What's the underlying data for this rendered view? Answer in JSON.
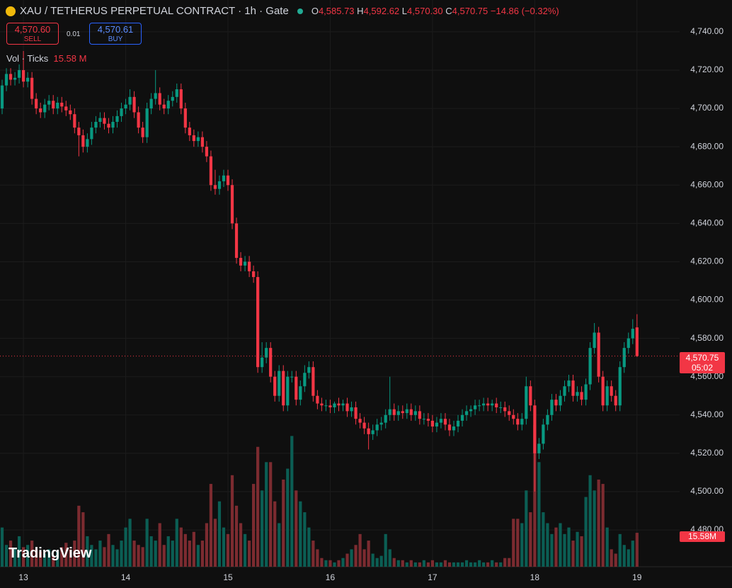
{
  "header": {
    "symbol": "XAU / TETHERUS PERPETUAL CONTRACT · 1h · Gate",
    "ohlc": [
      {
        "key": "O",
        "value": "4,585.73"
      },
      {
        "key": "H",
        "value": "4,592.62"
      },
      {
        "key": "L",
        "value": "4,570.30"
      },
      {
        "key": "C",
        "value": "4,570.75"
      }
    ],
    "change": "−14.86 (−0.32%)",
    "sell_price": "4,570.60",
    "sell_label": "SELL",
    "spread": "0.01",
    "buy_price": "4,570.61",
    "buy_label": "BUY",
    "volume_title": "Vol · Ticks",
    "volume_value": "15.58 M",
    "last_price_label": "4,570.75",
    "countdown": "05:02",
    "volume_axis_label": "15.58M",
    "logo": "TradingView"
  },
  "chart_data": {
    "type": "candlestick",
    "up_color": "#089981",
    "down_color": "#f23645",
    "up_volume_color": "#0b5e54",
    "down_volume_color": "#7c2b30",
    "grid": true,
    "xlim": [
      -0.5,
      159
    ],
    "xticks": [
      {
        "value": 5,
        "label": "13"
      },
      {
        "value": 29,
        "label": "14"
      },
      {
        "value": 53,
        "label": "15"
      },
      {
        "value": 77,
        "label": "16"
      },
      {
        "value": 101,
        "label": "17"
      },
      {
        "value": 125,
        "label": "18"
      },
      {
        "value": 149,
        "label": "19"
      }
    ],
    "ylim": [
      4460.8,
      4756.6
    ],
    "yticks": [
      {
        "value": 4480,
        "label": "4,480.00"
      },
      {
        "value": 4500,
        "label": "4,500.00"
      },
      {
        "value": 4520,
        "label": "4,520.00"
      },
      {
        "value": 4540,
        "label": "4,540.00"
      },
      {
        "value": 4560,
        "label": "4,560.00"
      },
      {
        "value": 4580,
        "label": "4,580.00"
      },
      {
        "value": 4600,
        "label": "4,600.00"
      },
      {
        "value": 4620,
        "label": "4,620.00"
      },
      {
        "value": 4640,
        "label": "4,640.00"
      },
      {
        "value": 4660,
        "label": "4,660.00"
      },
      {
        "value": 4680,
        "label": "4,680.00"
      },
      {
        "value": 4700,
        "label": "4,700.00"
      },
      {
        "value": 4720,
        "label": "4,720.00"
      },
      {
        "value": 4740,
        "label": "4,740.00"
      }
    ],
    "open": [
      4700,
      4712,
      4718,
      4715,
      4716,
      4720,
      4714,
      4716,
      4705,
      4700,
      4698,
      4702,
      4704,
      4700,
      4703,
      4701,
      4699,
      4697,
      4690,
      4686,
      4680,
      4684,
      4690,
      4693,
      4695,
      4692,
      4690,
      4693,
      4696,
      4700,
      4702,
      4706,
      4698,
      4690,
      4685,
      4700,
      4705,
      4708,
      4702,
      4700,
      4704,
      4706,
      4710,
      4700,
      4690,
      4686,
      4683,
      4685,
      4680,
      4675,
      4660,
      4658,
      4662,
      4665,
      4660,
      4640,
      4622,
      4618,
      4620,
      4615,
      4612,
      4565,
      4570,
      4575,
      4560,
      4550,
      4563,
      4545,
      4560,
      4560,
      4548,
      4555,
      4562,
      4565,
      4550,
      4546,
      4545,
      4545,
      4544,
      4546,
      4545,
      4546,
      4542,
      4544,
      4538,
      4536,
      4533,
      4530,
      4532,
      4535,
      4536,
      4540,
      4543,
      4540,
      4542,
      4541,
      4543,
      4540,
      4542,
      4538,
      4538,
      4537,
      4534,
      4536,
      4538,
      4535,
      4532,
      4534,
      4537,
      4540,
      4542,
      4543,
      4545,
      4545,
      4546,
      4545,
      4546,
      4544,
      4544,
      4542,
      4540,
      4538,
      4535,
      4538,
      4555,
      4545,
      4520,
      4525,
      4535,
      4540,
      4548,
      4545,
      4550,
      4555,
      4558,
      4550,
      4552,
      4548,
      4556,
      4575,
      4583,
      4560,
      4545,
      4555,
      4550,
      4545,
      4565,
      4575,
      4580,
      4585.73
    ],
    "high": [
      4715,
      4721,
      4721,
      4719,
      4723,
      4730,
      4719,
      4719,
      4708,
      4703,
      4705,
      4707,
      4707,
      4706,
      4706,
      4704,
      4702,
      4700,
      4693,
      4689,
      4687,
      4693,
      4696,
      4698,
      4698,
      4695,
      4696,
      4699,
      4703,
      4705,
      4710,
      4709,
      4701,
      4693,
      4703,
      4708,
      4720,
      4711,
      4705,
      4707,
      4709,
      4713,
      4713,
      4703,
      4693,
      4689,
      4688,
      4688,
      4683,
      4678,
      4668,
      4665,
      4668,
      4668,
      4663,
      4643,
      4625,
      4623,
      4623,
      4618,
      4615,
      4578,
      4578,
      4578,
      4563,
      4566,
      4566,
      4563,
      4563,
      4563,
      4558,
      4566,
      4568,
      4568,
      4553,
      4549,
      4548,
      4548,
      4547,
      4549,
      4548,
      4549,
      4547,
      4547,
      4541,
      4539,
      4536,
      4535,
      4538,
      4539,
      4543,
      4560,
      4546,
      4545,
      4545,
      4546,
      4546,
      4545,
      4545,
      4541,
      4541,
      4540,
      4539,
      4541,
      4541,
      4538,
      4537,
      4540,
      4543,
      4545,
      4545,
      4548,
      4548,
      4549,
      4549,
      4548,
      4549,
      4547,
      4547,
      4545,
      4543,
      4541,
      4541,
      4560,
      4558,
      4548,
      4528,
      4538,
      4543,
      4551,
      4551,
      4553,
      4558,
      4561,
      4561,
      4555,
      4555,
      4559,
      4578,
      4588,
      4586,
      4563,
      4558,
      4558,
      4553,
      4568,
      4578,
      4583,
      4590,
      4592.62
    ],
    "low": [
      4697,
      4709,
      4712,
      4712,
      4713,
      4711,
      4711,
      4702,
      4697,
      4695,
      4695,
      4699,
      4697,
      4697,
      4698,
      4696,
      4694,
      4687,
      4675,
      4677,
      4677,
      4681,
      4687,
      4690,
      4689,
      4687,
      4687,
      4690,
      4693,
      4697,
      4699,
      4695,
      4687,
      4682,
      4682,
      4697,
      4702,
      4699,
      4697,
      4697,
      4701,
      4703,
      4697,
      4687,
      4683,
      4680,
      4680,
      4677,
      4672,
      4657,
      4655,
      4655,
      4659,
      4657,
      4637,
      4619,
      4615,
      4615,
      4612,
      4609,
      4562,
      4562,
      4567,
      4557,
      4547,
      4547,
      4542,
      4542,
      4557,
      4545,
      4545,
      4552,
      4559,
      4547,
      4543,
      4542,
      4542,
      4541,
      4541,
      4542,
      4542,
      4539,
      4539,
      4535,
      4533,
      4530,
      4522,
      4527,
      4529,
      4532,
      4533,
      4537,
      4537,
      4537,
      4538,
      4538,
      4537,
      4537,
      4535,
      4535,
      4534,
      4531,
      4531,
      4533,
      4532,
      4529,
      4529,
      4531,
      4534,
      4537,
      4539,
      4540,
      4542,
      4542,
      4542,
      4542,
      4541,
      4541,
      4539,
      4537,
      4535,
      4532,
      4532,
      4535,
      4542,
      4500,
      4517,
      4522,
      4532,
      4537,
      4542,
      4542,
      4547,
      4552,
      4547,
      4547,
      4545,
      4545,
      4553,
      4572,
      4557,
      4542,
      4542,
      4547,
      4542,
      4542,
      4562,
      4572,
      4577,
      4570.3
    ],
    "close": [
      4712,
      4718,
      4715,
      4716,
      4720,
      4714,
      4716,
      4705,
      4700,
      4698,
      4702,
      4704,
      4700,
      4703,
      4701,
      4699,
      4697,
      4690,
      4686,
      4680,
      4684,
      4690,
      4693,
      4695,
      4692,
      4690,
      4693,
      4696,
      4700,
      4702,
      4706,
      4698,
      4690,
      4685,
      4700,
      4705,
      4708,
      4702,
      4700,
      4704,
      4706,
      4710,
      4700,
      4690,
      4686,
      4683,
      4685,
      4680,
      4675,
      4660,
      4658,
      4662,
      4665,
      4660,
      4640,
      4622,
      4618,
      4620,
      4615,
      4612,
      4565,
      4570,
      4575,
      4560,
      4550,
      4563,
      4545,
      4560,
      4560,
      4548,
      4555,
      4562,
      4565,
      4550,
      4546,
      4545,
      4545,
      4544,
      4546,
      4545,
      4546,
      4542,
      4544,
      4538,
      4536,
      4533,
      4530,
      4532,
      4535,
      4536,
      4540,
      4543,
      4540,
      4542,
      4541,
      4543,
      4540,
      4542,
      4538,
      4538,
      4537,
      4534,
      4536,
      4538,
      4535,
      4532,
      4534,
      4537,
      4540,
      4542,
      4543,
      4545,
      4545,
      4546,
      4545,
      4546,
      4544,
      4544,
      4542,
      4540,
      4538,
      4535,
      4538,
      4555,
      4545,
      4520,
      4525,
      4535,
      4540,
      4548,
      4545,
      4550,
      4555,
      4558,
      4550,
      4552,
      4548,
      4556,
      4575,
      4583,
      4560,
      4545,
      4555,
      4550,
      4545,
      4565,
      4575,
      4580,
      4585,
      4570.75
    ],
    "volume": [
      18,
      10,
      12,
      8,
      14,
      9,
      10,
      12,
      8,
      7,
      6,
      8,
      5,
      7,
      9,
      11,
      8,
      12,
      28,
      25,
      14,
      10,
      8,
      12,
      9,
      15,
      10,
      8,
      12,
      18,
      22,
      12,
      10,
      9,
      22,
      14,
      12,
      20,
      10,
      14,
      12,
      22,
      18,
      15,
      12,
      16,
      10,
      12,
      20,
      38,
      22,
      30,
      18,
      15,
      42,
      28,
      20,
      15,
      12,
      38,
      55,
      35,
      48,
      48,
      30,
      20,
      40,
      45,
      60,
      35,
      30,
      25,
      18,
      12,
      8,
      4,
      3,
      3,
      2,
      3,
      4,
      6,
      8,
      10,
      15,
      8,
      12,
      6,
      4,
      5,
      15,
      8,
      4,
      3,
      3,
      2,
      3,
      2,
      2,
      3,
      2,
      3,
      2,
      2,
      3,
      2,
      2,
      2,
      2,
      3,
      2,
      2,
      3,
      2,
      2,
      3,
      2,
      2,
      4,
      4,
      22,
      22,
      20,
      35,
      25,
      65,
      48,
      25,
      20,
      15,
      18,
      20,
      15,
      18,
      12,
      16,
      14,
      32,
      42,
      35,
      40,
      38,
      18,
      8,
      6,
      15,
      10,
      8,
      12,
      15.58
    ]
  }
}
